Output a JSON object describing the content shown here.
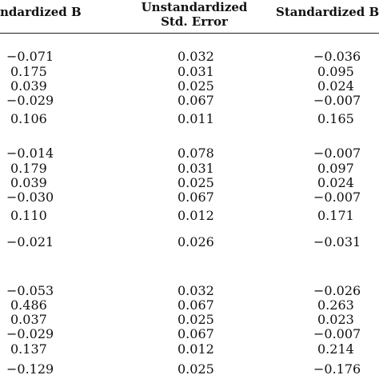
{
  "table": {
    "headers": {
      "col1": "ndardized B",
      "col2_line1": "Unstandardized",
      "col2_line2": "Std. Error",
      "col3": "Standardized Be"
    },
    "rows": [
      [
        "−0.071",
        "0.032",
        "−0.036"
      ],
      [
        "0.175",
        "0.031",
        "0.095"
      ],
      [
        "0.039",
        "0.025",
        "0.024"
      ],
      [
        "−0.029",
        "0.067",
        "−0.007"
      ],
      [
        "0.106",
        "0.011",
        "0.165"
      ],
      [
        "−0.014",
        "0.078",
        "−0.007"
      ],
      [
        "0.179",
        "0.031",
        "0.097"
      ],
      [
        "0.039",
        "0.025",
        "0.024"
      ],
      [
        "−0.030",
        "0.067",
        "−0.007"
      ],
      [
        "0.110",
        "0.012",
        "0.171"
      ],
      [
        "−0.021",
        "0.026",
        "−0.031"
      ],
      [
        "−0.053",
        "0.032",
        "−0.026"
      ],
      [
        "0.486",
        "0.067",
        "0.263"
      ],
      [
        "0.037",
        "0.025",
        "0.023"
      ],
      [
        "−0.029",
        "0.067",
        "−0.007"
      ],
      [
        "0.137",
        "0.012",
        "0.214"
      ],
      [
        "−0.129",
        "0.025",
        "−0.176"
      ]
    ]
  }
}
